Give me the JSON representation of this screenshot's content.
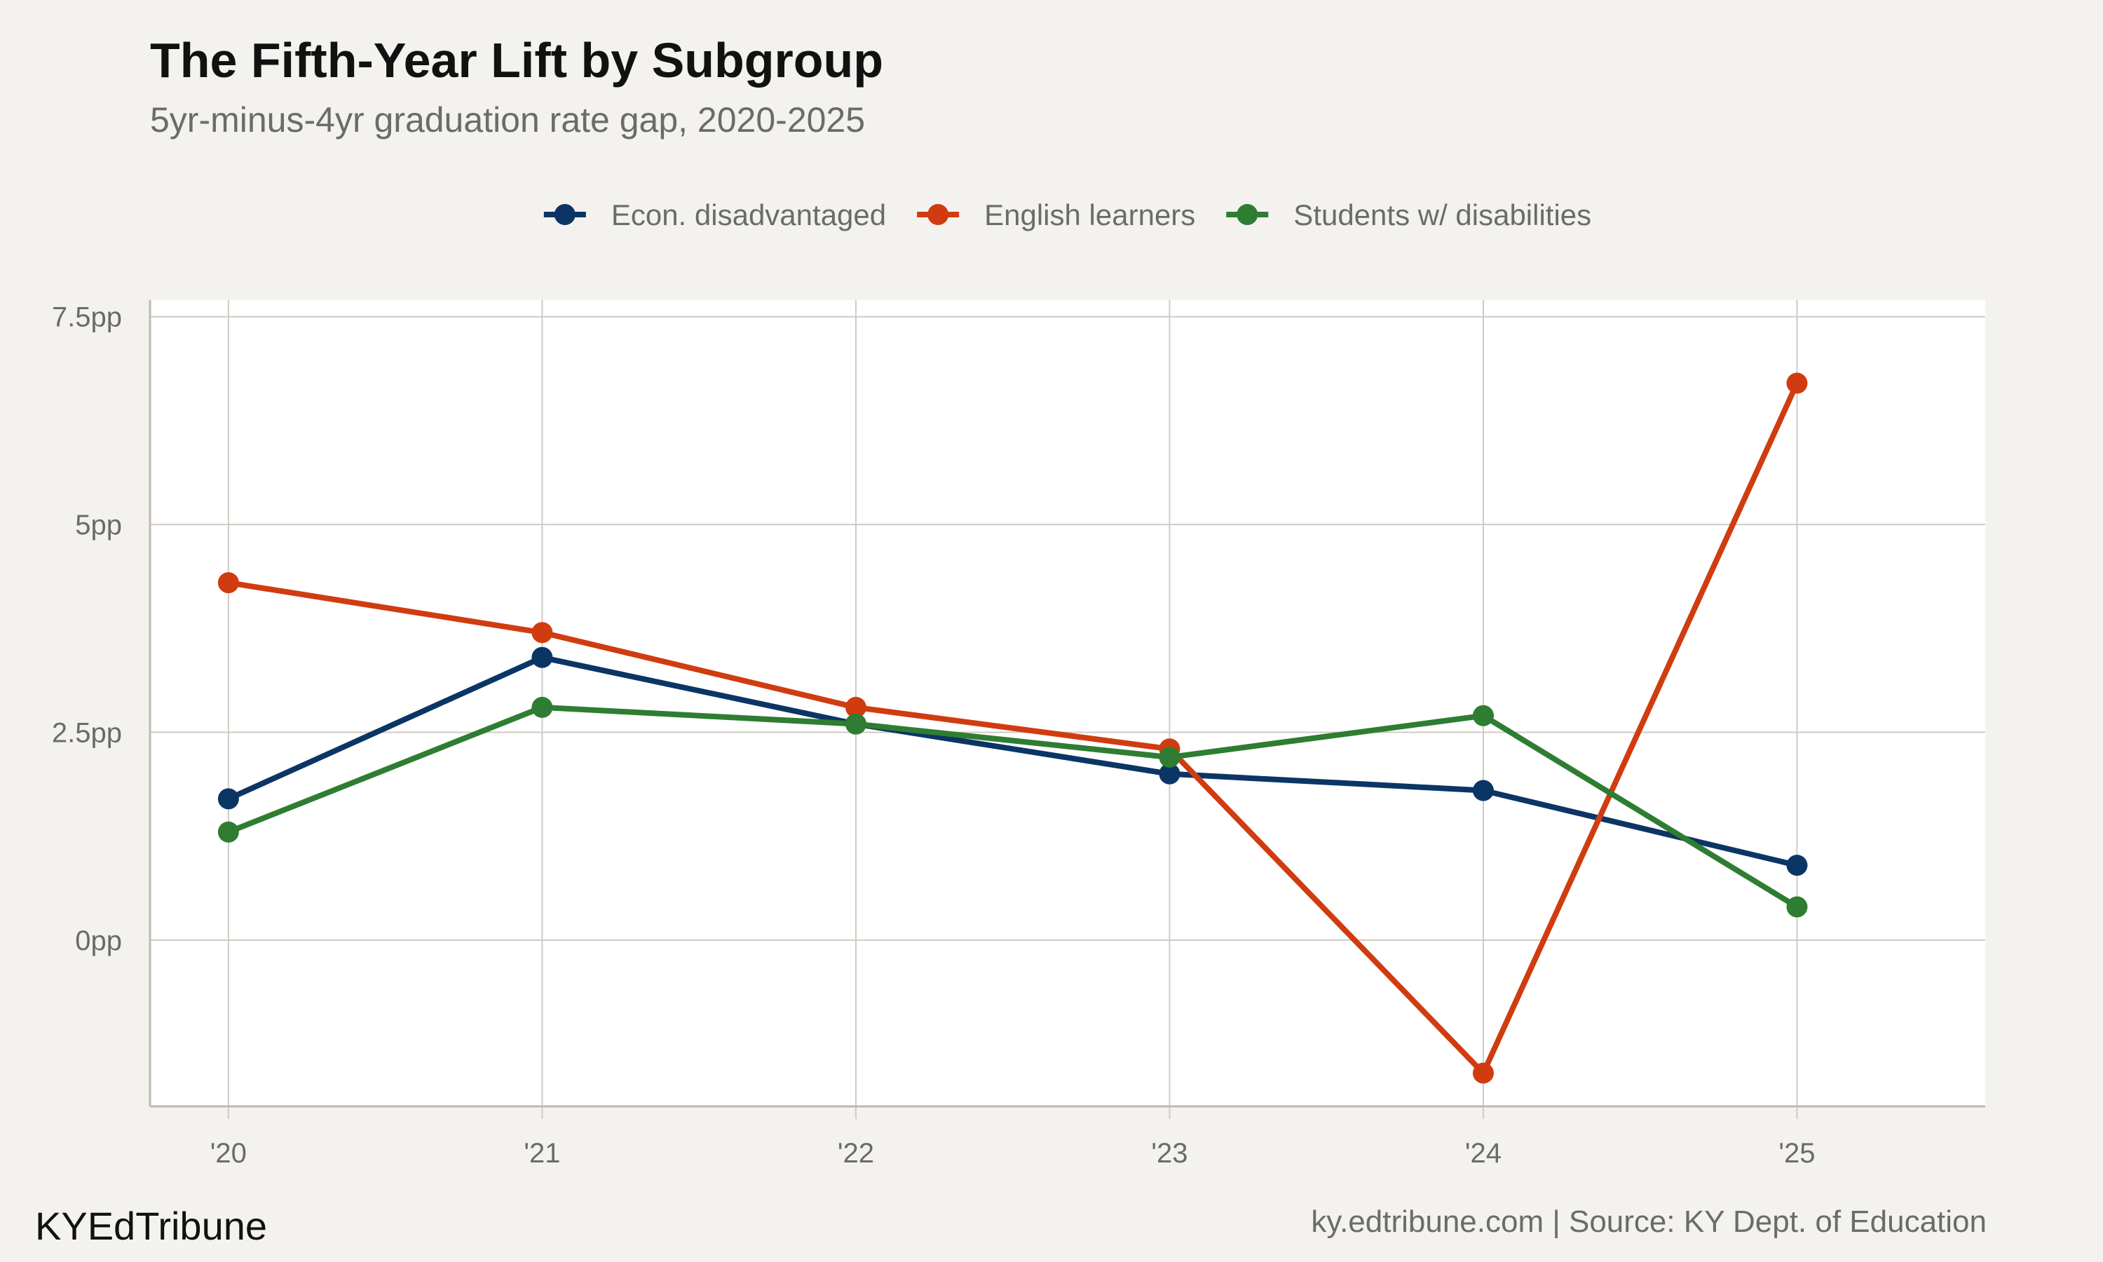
{
  "title": "The Fifth-Year Lift by Subgroup",
  "subtitle": "5yr-minus-4yr graduation rate gap, 2020-2025",
  "footer": {
    "brand": "KYEdTribune",
    "source": "ky.edtribune.com | Source: KY Dept. of Education"
  },
  "chart_data": {
    "type": "line",
    "title": "The Fifth-Year Lift by Subgroup",
    "subtitle": "5yr-minus-4yr graduation rate gap, 2020-2025",
    "xlabel": "",
    "ylabel": "",
    "categories": [
      "'20",
      "'21",
      "'22",
      "'23",
      "'24",
      "'25"
    ],
    "x": [
      2020,
      2021,
      2022,
      2023,
      2024,
      2025
    ],
    "xlim": [
      2019.75,
      2025.6
    ],
    "ylim": [
      -2.0,
      7.7
    ],
    "y_ticks": [
      0,
      2.5,
      5,
      7.5
    ],
    "y_tick_labels": [
      "0pp",
      "2.5pp",
      "5pp",
      "7.5pp"
    ],
    "grid": true,
    "legend_position": "top",
    "series": [
      {
        "name": "Econ. disadvantaged",
        "color": "#0b3565",
        "values": [
          1.7,
          3.4,
          2.6,
          2.0,
          1.8,
          0.9
        ]
      },
      {
        "name": "English learners",
        "color": "#d03c10",
        "values": [
          4.3,
          3.7,
          2.8,
          2.3,
          -1.6,
          6.7
        ]
      },
      {
        "name": "Students w/ disabilities",
        "color": "#2e7d32",
        "values": [
          1.3,
          2.8,
          2.6,
          2.2,
          2.7,
          0.4
        ]
      }
    ]
  }
}
